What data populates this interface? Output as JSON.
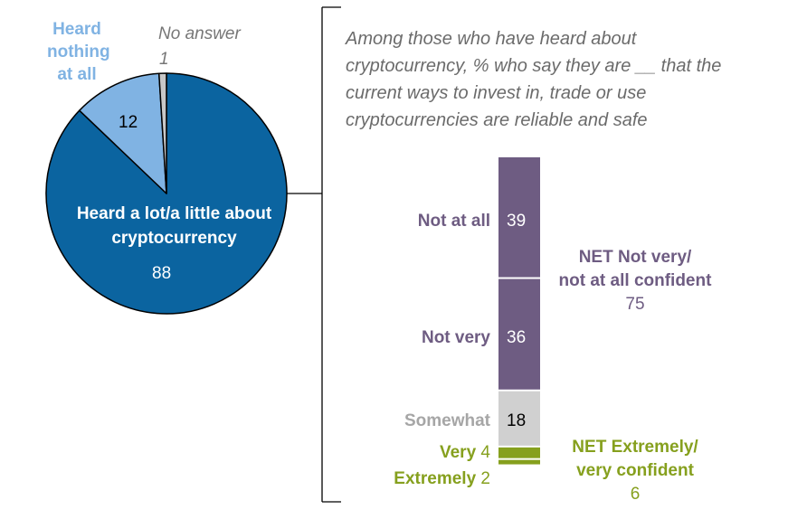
{
  "chart_data": [
    {
      "type": "pie",
      "slices": [
        {
          "label": "Heard a lot/a little about cryptocurrency",
          "value": 88,
          "color": "#0b64a0"
        },
        {
          "label": "Heard nothing at all",
          "value": 12,
          "color": "#80b3e3"
        },
        {
          "label": "No answer",
          "value": 1,
          "color": "#c8c8c8"
        }
      ]
    },
    {
      "type": "bar",
      "stacked": true,
      "title": "Among those who have heard about cryptocurrency, % who say they are __ that the current ways to invest in, trade or use cryptocurrencies are reliable and safe",
      "categories": [
        "Not at all",
        "Not very",
        "Somewhat",
        "Very",
        "Extremely"
      ],
      "values": [
        39,
        36,
        18,
        4,
        2
      ],
      "colors": [
        "#6e5c82",
        "#6e5c82",
        "#d0d0d0",
        "#86a01e",
        "#86a01e"
      ],
      "nets": [
        {
          "label": "NET Not very/ not at all confident",
          "line1": "NET Not very/",
          "line2": "not at all confident",
          "value": 75,
          "color": "#6e5c82"
        },
        {
          "label": "NET Extremely/ very confident",
          "line1": "NET Extremely/",
          "line2": "very confident",
          "value": 6,
          "color": "#86a01e"
        }
      ]
    }
  ]
}
